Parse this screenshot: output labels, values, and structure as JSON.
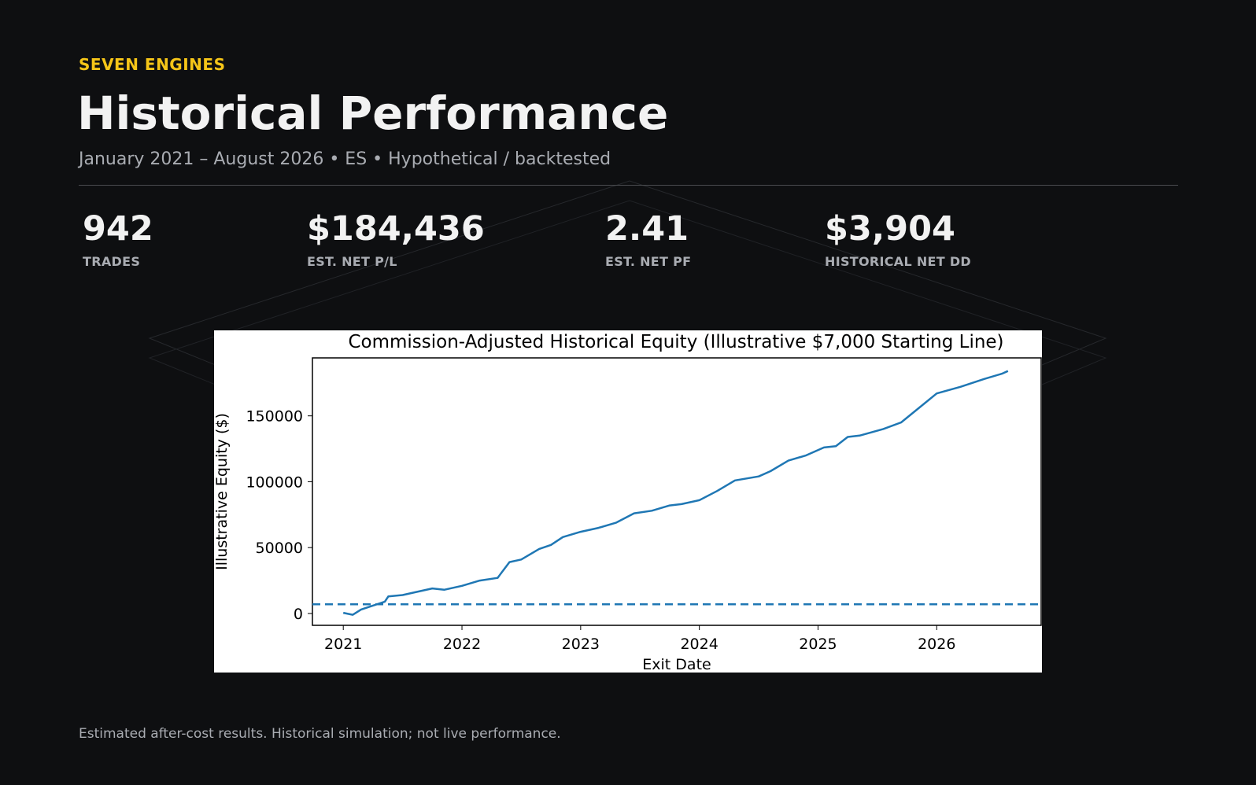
{
  "header": {
    "brand": "SEVEN ENGINES",
    "title": "Historical Performance",
    "subtitle": "January 2021 – August 2026 • ES • Hypothetical / backtested"
  },
  "stats": [
    {
      "value": "942",
      "label": "TRADES"
    },
    {
      "value": "$184,436",
      "label": "EST. NET P/L"
    },
    {
      "value": "2.41",
      "label": "EST. NET PF"
    },
    {
      "value": "$3,904",
      "label": "HISTORICAL NET DD"
    }
  ],
  "footer": {
    "note": "Estimated after-cost results. Historical simulation; not live performance."
  },
  "colors": {
    "accent": "#f5c518",
    "line": "#1f77b4",
    "background": "#0e0f11"
  },
  "chart_data": {
    "type": "line",
    "title": "Commission-Adjusted Historical Equity (Illustrative $7,000 Starting Line)",
    "xlabel": "Exit Date",
    "ylabel": "Illustrative Equity ($)",
    "xlim": [
      2020.74,
      2026.88
    ],
    "ylim": [
      -9000,
      194000
    ],
    "xticks": [
      2021,
      2022,
      2023,
      2024,
      2025,
      2026
    ],
    "yticks": [
      0,
      50000,
      100000,
      150000
    ],
    "grid": false,
    "reference_line": {
      "y": 7000,
      "style": "dashed"
    },
    "series": [
      {
        "x": [
          2021.0,
          2021.08,
          2021.15,
          2021.25,
          2021.35,
          2021.38,
          2021.5,
          2021.6,
          2021.75,
          2021.85,
          2022.0,
          2022.15,
          2022.3,
          2022.4,
          2022.5,
          2022.65,
          2022.75,
          2022.85,
          2023.0,
          2023.15,
          2023.3,
          2023.45,
          2023.6,
          2023.75,
          2023.85,
          2024.0,
          2024.15,
          2024.3,
          2024.5,
          2024.6,
          2024.75,
          2024.9,
          2025.05,
          2025.15,
          2025.25,
          2025.35,
          2025.55,
          2025.7,
          2025.85,
          2026.0,
          2026.2,
          2026.4,
          2026.55,
          2026.6
        ],
        "y": [
          500,
          -1000,
          3000,
          6000,
          9000,
          13000,
          14000,
          16000,
          19000,
          18000,
          21000,
          25000,
          27000,
          39000,
          41000,
          49000,
          52000,
          58000,
          62000,
          65000,
          69000,
          76000,
          78000,
          82000,
          83000,
          86000,
          93000,
          101000,
          104000,
          108000,
          116000,
          120000,
          126000,
          127000,
          134000,
          135000,
          140000,
          145000,
          156000,
          167000,
          172000,
          178000,
          182000,
          184000
        ]
      }
    ]
  }
}
